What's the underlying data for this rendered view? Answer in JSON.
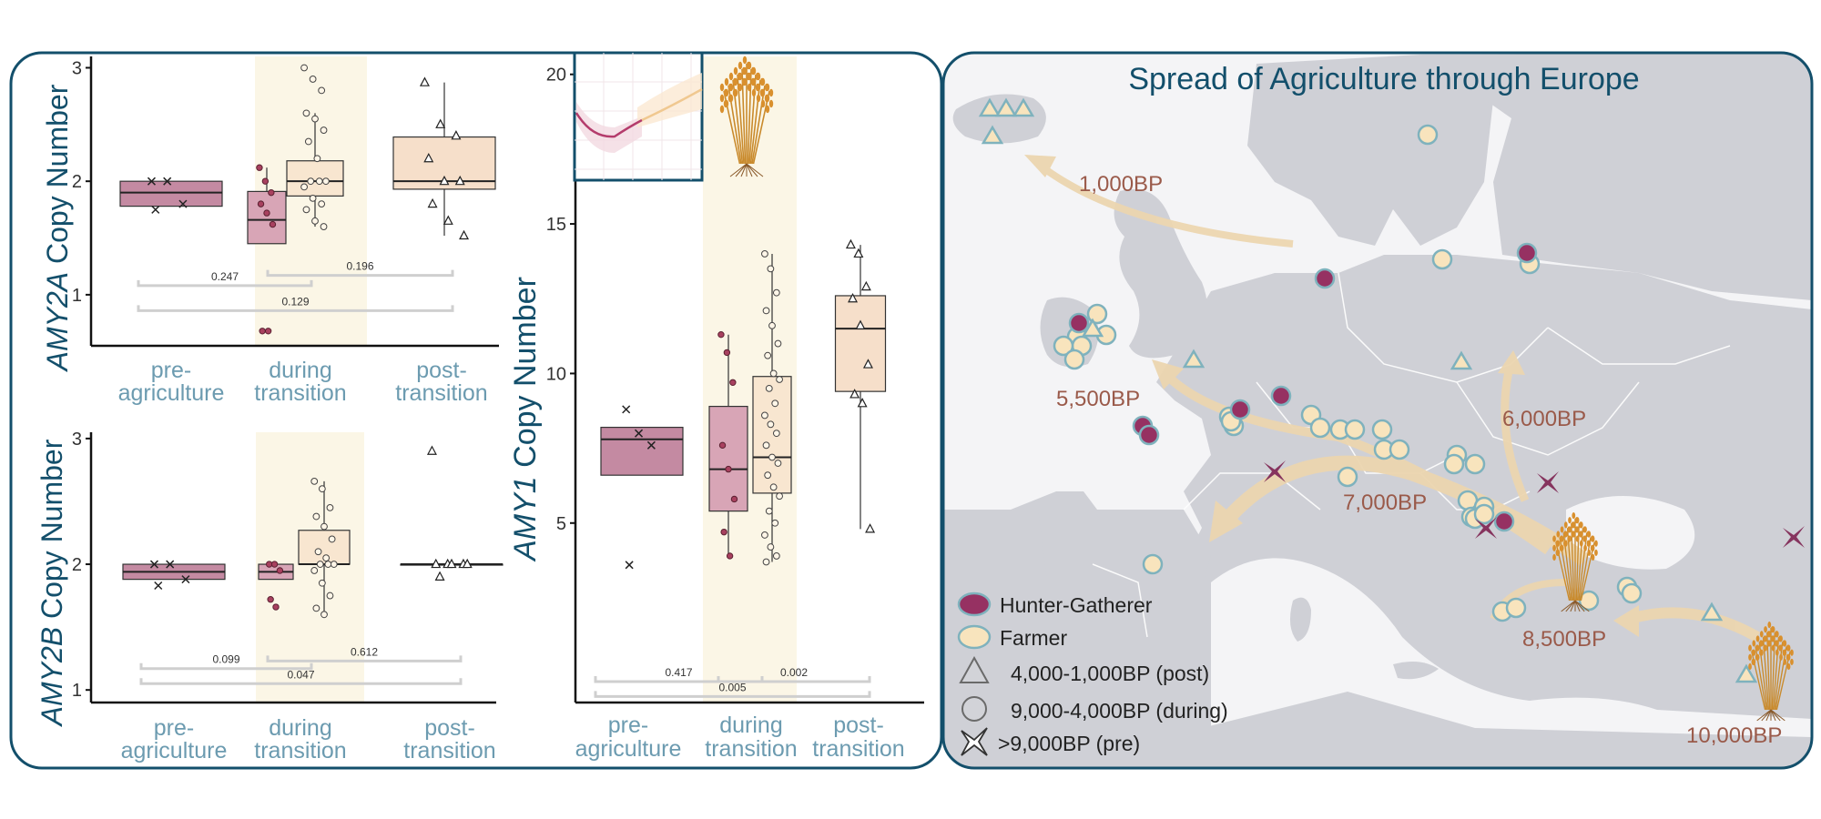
{
  "colors": {
    "pre": "#c48aa2",
    "during_pre": "#d8a5b6",
    "during_farm": "#f8e6d0",
    "post": "#f6dfca",
    "hunter": "#963162",
    "farmer": "#f8e4bd",
    "farmer_stroke": "#7fb2bd",
    "star": "#86345e",
    "band": "#fbf6e6",
    "panel_border": "#134f6b",
    "arrow": "#ecd6b0",
    "map_water": "#f4f4f6",
    "map_land": "#cfd0d6"
  },
  "chart_data": [
    {
      "id": "amy2a",
      "type": "box",
      "ylabel_gene": "AMY2A",
      "ylabel_rest": " Copy Number",
      "yticks": [
        1,
        2,
        3
      ],
      "ylim": [
        0.55,
        3.1
      ],
      "categories": [
        "pre-\nagriculture",
        "during\ntransition",
        "post-\ntransition"
      ],
      "boxes": [
        {
          "group": "pre",
          "q1": 1.78,
          "median": 1.9,
          "q3": 2.0,
          "whisker_low": 1.78,
          "whisker_high": 2.0,
          "points": [
            2.0,
            2.0,
            1.8,
            1.75
          ],
          "marker": "cross"
        },
        {
          "group": "during_pre",
          "q1": 1.45,
          "median": 1.66,
          "q3": 1.91,
          "whisker_low": 1.45,
          "whisker_high": 2.12,
          "points": [
            2.12,
            2.0,
            1.9,
            1.8,
            1.72,
            1.62,
            0.68,
            0.68
          ],
          "marker": "dot"
        },
        {
          "group": "during_farm",
          "q1": 1.87,
          "median": 2.0,
          "q3": 2.18,
          "whisker_low": 1.6,
          "whisker_high": 2.6,
          "points": [
            3.0,
            2.9,
            2.8,
            2.6,
            2.55,
            2.45,
            2.35,
            2.2,
            2.0,
            2.0,
            2.0,
            1.95,
            1.85,
            1.8,
            1.75,
            1.65,
            1.6
          ],
          "marker": "circle"
        },
        {
          "group": "post",
          "q1": 1.93,
          "median": 2.0,
          "q3": 2.39,
          "whisker_low": 1.52,
          "whisker_high": 2.87,
          "points": [
            2.87,
            2.5,
            2.4,
            2.2,
            2.0,
            2.0,
            1.8,
            1.65,
            1.52
          ],
          "marker": "triangle"
        }
      ],
      "comparisons": [
        {
          "label": "0.247",
          "from": 0,
          "to": 1,
          "y": 1.08
        },
        {
          "label": "0.196",
          "from": 1,
          "to": 2,
          "y": 1.17
        },
        {
          "label": "0.129",
          "from": 0,
          "to": 2,
          "y": 0.86
        }
      ]
    },
    {
      "id": "amy2b",
      "type": "box",
      "ylabel_gene": "AMY2B",
      "ylabel_rest": " Copy Number",
      "yticks": [
        1,
        2,
        3
      ],
      "ylim": [
        0.9,
        3.05
      ],
      "categories": [
        "pre-\nagriculture",
        "during\ntransition",
        "post-\ntransition"
      ],
      "boxes": [
        {
          "group": "pre",
          "q1": 1.88,
          "median": 1.94,
          "q3": 2.0,
          "whisker_low": 1.88,
          "whisker_high": 2.0,
          "points": [
            2.0,
            2.0,
            1.88,
            1.83
          ],
          "marker": "cross"
        },
        {
          "group": "during_pre",
          "q1": 1.88,
          "median": 1.94,
          "q3": 2.0,
          "whisker_low": 1.88,
          "whisker_high": 2.0,
          "points": [
            2.0,
            2.0,
            1.95,
            1.72,
            1.66
          ],
          "marker": "dot"
        },
        {
          "group": "during_farm",
          "q1": 2.0,
          "median": 2.0,
          "q3": 2.27,
          "whisker_low": 1.6,
          "whisker_high": 2.66,
          "points": [
            2.66,
            2.6,
            2.45,
            2.38,
            2.3,
            2.2,
            2.1,
            2.05,
            2.0,
            2.0,
            2.0,
            1.95,
            1.85,
            1.75,
            1.65,
            1.6
          ],
          "marker": "circle"
        },
        {
          "group": "post",
          "q1": 2.0,
          "median": 2.0,
          "q3": 2.0,
          "whisker_low": 2.0,
          "whisker_high": 2.0,
          "points": [
            2.9,
            2.0,
            2.0,
            2.0,
            2.0,
            2.0,
            1.9
          ],
          "marker": "triangle"
        }
      ],
      "comparisons": [
        {
          "label": "0.099",
          "from": 0,
          "to": 1,
          "y": 1.17
        },
        {
          "label": "0.612",
          "from": 1,
          "to": 2,
          "y": 1.23
        },
        {
          "label": "0.047",
          "from": 0,
          "to": 2,
          "y": 1.05
        }
      ]
    },
    {
      "id": "amy1",
      "type": "box",
      "ylabel_gene": "AMY1",
      "ylabel_rest": " Copy Number",
      "yticks": [
        5,
        10,
        15,
        20
      ],
      "ylim": [
        -1.0,
        20.6
      ],
      "categories": [
        "pre-\nagriculture",
        "during\ntransition",
        "post-\ntransition"
      ],
      "boxes": [
        {
          "group": "pre",
          "q1": 6.6,
          "median": 7.8,
          "q3": 8.2,
          "whisker_low": 6.6,
          "whisker_high": 8.2,
          "points": [
            8.8,
            8.0,
            7.6,
            3.6
          ],
          "marker": "cross"
        },
        {
          "group": "during_pre",
          "q1": 5.4,
          "median": 6.8,
          "q3": 8.9,
          "whisker_low": 3.9,
          "whisker_high": 11.3,
          "points": [
            11.3,
            10.7,
            9.7,
            7.6,
            6.8,
            5.8,
            4.7,
            3.9
          ],
          "marker": "dot"
        },
        {
          "group": "during_farm",
          "q1": 6.0,
          "median": 7.2,
          "q3": 9.9,
          "whisker_low": 3.7,
          "whisker_high": 14.0,
          "points": [
            14.0,
            13.5,
            12.7,
            12.1,
            11.6,
            11.0,
            10.6,
            10.0,
            9.8,
            9.5,
            9.0,
            8.6,
            8.3,
            8.0,
            7.6,
            7.2,
            7.0,
            6.6,
            6.2,
            5.9,
            5.4,
            5.0,
            4.6,
            4.2,
            3.9,
            3.7
          ],
          "marker": "circle"
        },
        {
          "group": "post",
          "q1": 9.4,
          "median": 11.5,
          "q3": 12.6,
          "whisker_low": 4.8,
          "whisker_high": 14.3,
          "points": [
            14.3,
            14.0,
            12.9,
            12.5,
            11.6,
            10.3,
            9.3,
            9.0,
            4.8
          ],
          "marker": "triangle"
        }
      ],
      "comparisons": [
        {
          "label": "0.417",
          "from": 0,
          "to": 1,
          "y": -0.3
        },
        {
          "label": "0.002",
          "from": 1,
          "to": 2,
          "y": -0.3
        },
        {
          "label": "0.005",
          "from": 0,
          "to": 2,
          "y": -0.8
        }
      ]
    }
  ],
  "map": {
    "title": "Spread of Agriculture through Europe",
    "arrow_labels": [
      "1,000BP",
      "5,500BP",
      "6,000BP",
      "7,000BP",
      "8,500BP",
      "10,000BP"
    ],
    "legend": [
      {
        "kind": "hunter",
        "label": "Hunter-Gatherer"
      },
      {
        "kind": "farmer",
        "label": "Farmer"
      },
      {
        "kind": "triangle",
        "label": "4,000-1,000BP (post)"
      },
      {
        "kind": "circle",
        "label": "9,000-4,000BP (during)"
      },
      {
        "kind": "star",
        "label": ">9,000BP (pre)"
      }
    ]
  }
}
